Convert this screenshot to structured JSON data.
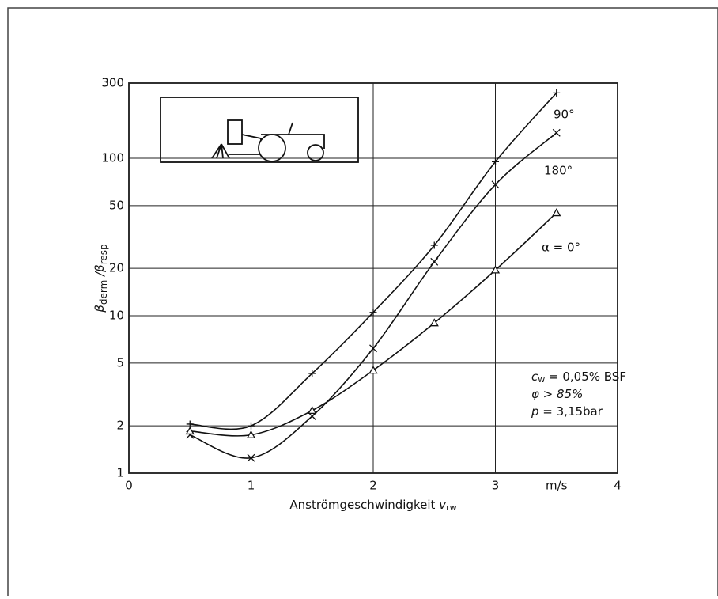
{
  "chart_data": {
    "type": "line",
    "ylabel": [
      "β",
      "derm",
      " /β",
      "resp"
    ],
    "xlabel": [
      "Anströmgeschwindigkeit ",
      "v",
      "rw"
    ],
    "x_unit": "m/s",
    "xlim": [
      0,
      4
    ],
    "xticks": [
      0,
      1,
      2,
      3,
      4
    ],
    "ylim": [
      1,
      300
    ],
    "yticks": [
      1,
      2,
      5,
      10,
      20,
      50,
      100,
      300
    ],
    "log_y": true,
    "grid": true,
    "x": [
      0.5,
      1,
      1.5,
      2,
      2.5,
      3,
      3.5
    ],
    "series": [
      {
        "name": "90°",
        "color": "#111111",
        "marker": "plus",
        "values": [
          2.05,
          2.0,
          4.3,
          10.5,
          28,
          95,
          260
        ]
      },
      {
        "name": "180°",
        "color": "#111111",
        "marker": "x",
        "values": [
          1.75,
          1.25,
          2.3,
          6.2,
          22,
          68,
          145
        ]
      },
      {
        "name": "α = 0°",
        "color": "#111111",
        "marker": "triangle",
        "values": [
          1.85,
          1.75,
          2.5,
          4.5,
          9,
          19.5,
          45
        ]
      }
    ],
    "annotations": [
      [
        "c",
        "w",
        " = 0,05% BSF"
      ],
      [
        "φ > 85%"
      ],
      [
        "p",
        " = 3,15bar"
      ]
    ]
  }
}
